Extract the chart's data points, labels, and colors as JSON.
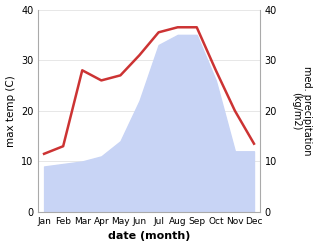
{
  "months": [
    "Jan",
    "Feb",
    "Mar",
    "Apr",
    "May",
    "Jun",
    "Jul",
    "Aug",
    "Sep",
    "Oct",
    "Nov",
    "Dec"
  ],
  "max_temp": [
    11.5,
    13.0,
    28.0,
    26.0,
    27.0,
    31.0,
    35.5,
    36.5,
    36.5,
    28.0,
    20.0,
    13.5
  ],
  "precipitation": [
    9.0,
    9.5,
    10.0,
    11.0,
    14.0,
    22.0,
    33.0,
    35.0,
    35.0,
    26.0,
    12.0,
    12.0
  ],
  "temp_color": "#cc3333",
  "precip_fill_color": "#c8d4f5",
  "ylim_left": [
    0,
    40
  ],
  "ylim_right": [
    0,
    40
  ],
  "xlabel": "date (month)",
  "ylabel_left": "max temp (C)",
  "ylabel_right": "med. precipitation\n(kg/m2)",
  "yticks": [
    0,
    10,
    20,
    30,
    40
  ],
  "background_color": "#ffffff",
  "spine_color": "#aaaaaa",
  "grid_color": "#dddddd"
}
